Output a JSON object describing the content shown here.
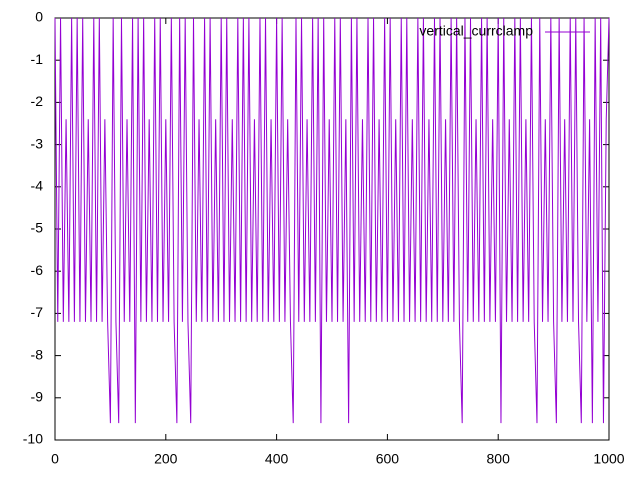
{
  "chart_data": {
    "type": "line",
    "series": [
      {
        "name": "vertical_currclamp",
        "color": "#9400d3",
        "x": [
          0,
          5,
          10,
          15,
          20,
          25,
          30,
          35,
          40,
          45,
          50,
          55,
          60,
          65,
          70,
          75,
          80,
          85,
          90,
          95,
          100,
          105,
          110,
          115,
          120,
          125,
          130,
          135,
          140,
          145,
          150,
          155,
          160,
          165,
          170,
          175,
          180,
          185,
          190,
          195,
          200,
          205,
          210,
          215,
          220,
          225,
          230,
          235,
          240,
          245,
          250,
          255,
          260,
          265,
          270,
          275,
          280,
          285,
          290,
          295,
          300,
          305,
          310,
          315,
          320,
          325,
          330,
          335,
          340,
          345,
          350,
          355,
          360,
          365,
          370,
          375,
          380,
          385,
          390,
          395,
          400,
          405,
          410,
          415,
          420,
          425,
          430,
          435,
          440,
          445,
          450,
          455,
          460,
          465,
          470,
          475,
          480,
          485,
          490,
          495,
          500,
          505,
          510,
          515,
          520,
          525,
          530,
          535,
          540,
          545,
          550,
          555,
          560,
          565,
          570,
          575,
          580,
          585,
          590,
          595,
          600,
          605,
          610,
          615,
          620,
          625,
          630,
          635,
          640,
          645,
          650,
          655,
          660,
          665,
          670,
          675,
          680,
          685,
          690,
          695,
          700,
          705,
          710,
          715,
          720,
          725,
          730,
          735,
          740,
          745,
          750,
          755,
          760,
          765,
          770,
          775,
          780,
          785,
          790,
          795,
          800,
          805,
          810,
          815,
          820,
          825,
          830,
          835,
          840,
          845,
          850,
          855,
          860,
          865,
          870,
          875,
          880,
          885,
          890,
          895,
          900,
          905,
          910,
          915,
          920,
          925,
          930,
          935,
          940,
          945,
          950,
          955,
          960,
          965,
          970,
          975,
          980,
          985,
          990,
          995,
          1000
        ],
        "values": [
          0,
          -7.2,
          0,
          -7.2,
          -2.4,
          -7.2,
          0,
          -7.2,
          0,
          -7.2,
          0,
          -7.2,
          -2.4,
          -7.2,
          0,
          -7.2,
          0,
          -7.2,
          -2.4,
          -7.2,
          -9.6,
          0,
          -7.2,
          -9.6,
          0,
          -7.2,
          -2.4,
          -7.2,
          0,
          -9.6,
          0,
          -7.2,
          0,
          -7.2,
          -2.4,
          -7.2,
          0,
          -7.2,
          0,
          -7.2,
          -2.4,
          -7.2,
          0,
          -7.2,
          -9.6,
          0,
          -7.2,
          0,
          -7.2,
          -9.6,
          0,
          -7.2,
          -2.4,
          -7.2,
          0,
          -7.2,
          0,
          -7.2,
          -2.4,
          -7.2,
          0,
          -7.2,
          0,
          -7.2,
          -2.4,
          -7.2,
          0,
          -7.2,
          0,
          -7.2,
          0,
          -7.2,
          -2.4,
          -7.2,
          0,
          -7.2,
          0,
          -7.2,
          -2.4,
          -7.2,
          0,
          -7.2,
          0,
          -7.2,
          -2.4,
          -7.2,
          -9.6,
          0,
          -7.2,
          0,
          -7.2,
          -2.4,
          -7.2,
          0,
          -7.2,
          0,
          -9.6,
          0,
          -7.2,
          -2.4,
          -7.2,
          0,
          -7.2,
          0,
          -7.2,
          -2.4,
          -9.6,
          0,
          -7.2,
          0,
          -7.2,
          -2.4,
          -7.2,
          0,
          -7.2,
          0,
          -7.2,
          -2.4,
          -7.2,
          0,
          -7.2,
          0,
          -7.2,
          -2.4,
          -7.2,
          0,
          -7.2,
          0,
          -7.2,
          -2.4,
          -7.2,
          0,
          -7.2,
          0,
          -7.2,
          -2.4,
          -7.2,
          0,
          -7.2,
          0,
          -7.2,
          -2.4,
          -7.2,
          0,
          -7.2,
          0,
          -7.2,
          -9.6,
          0,
          -7.2,
          0,
          -7.2,
          -2.4,
          -7.2,
          0,
          -7.2,
          0,
          -7.2,
          -2.4,
          -7.2,
          0,
          -9.6,
          0,
          -7.2,
          -2.4,
          -7.2,
          0,
          -7.2,
          0,
          -7.2,
          -2.4,
          -7.2,
          0,
          -7.2,
          -9.6,
          0,
          -7.2,
          -2.4,
          -7.2,
          0,
          -7.2,
          -9.6,
          0,
          -7.2,
          -2.4,
          -7.2,
          0,
          -7.2,
          0,
          -7.2,
          -9.6,
          0,
          -7.2,
          -2.4,
          -9.6,
          0,
          -7.2,
          0,
          -9.6,
          -2.4,
          0
        ]
      }
    ],
    "xlim": [
      0,
      1000
    ],
    "xticks": [
      0,
      200,
      400,
      600,
      800,
      1000
    ],
    "ylim": [
      -10,
      0
    ],
    "yticks": [
      0,
      -1,
      -2,
      -3,
      -4,
      -5,
      -6,
      -7,
      -8,
      -9,
      -10
    ],
    "legend": "top-right"
  }
}
